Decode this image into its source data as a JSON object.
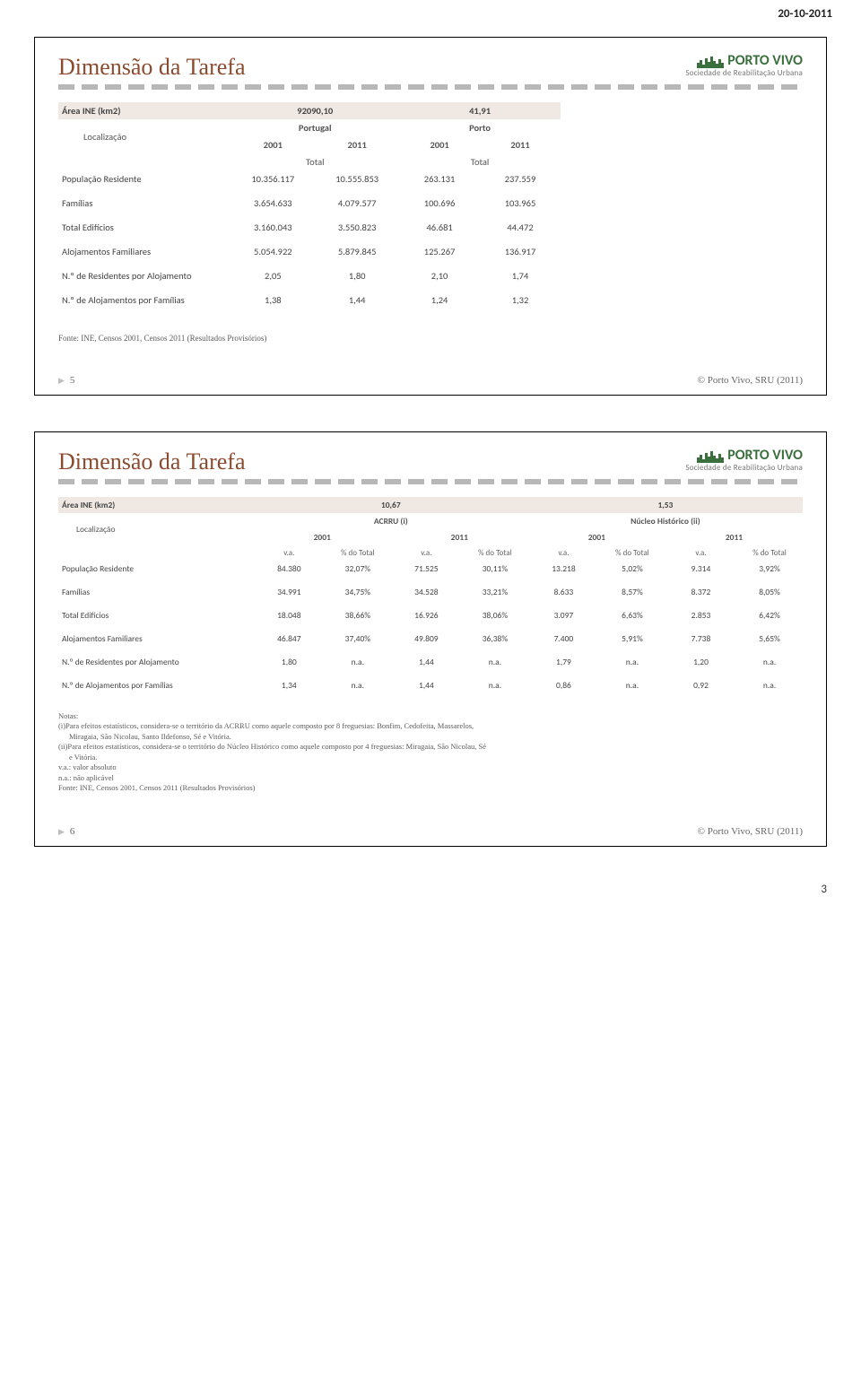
{
  "header_date": "20-10-2011",
  "logo": {
    "name": "PORTO VIVO",
    "sub": "Sociedade de Reabilitação Urbana"
  },
  "slide1": {
    "title": "Dimensão da Tarefa",
    "table": {
      "row_area_label": "Área INE (km2)",
      "area_vals": [
        "92090,10",
        "41,91"
      ],
      "row_loc_label": "Localização",
      "regions": [
        "Portugal",
        "Porto"
      ],
      "years": [
        "2001",
        "2011",
        "2001",
        "2011"
      ],
      "totals": [
        "Total",
        "Total"
      ],
      "rows": [
        {
          "label": "População Residente",
          "vals": [
            "10.356.117",
            "10.555.853",
            "263.131",
            "237.559"
          ]
        },
        {
          "label": "Famílias",
          "vals": [
            "3.654.633",
            "4.079.577",
            "100.696",
            "103.965"
          ]
        },
        {
          "label": "Total Edifícios",
          "vals": [
            "3.160.043",
            "3.550.823",
            "46.681",
            "44.472"
          ]
        },
        {
          "label": "Alojamentos Familiares",
          "vals": [
            "5.054.922",
            "5.879.845",
            "125.267",
            "136.917"
          ]
        },
        {
          "label": "N.º de Residentes por Alojamento",
          "vals": [
            "2,05",
            "1,80",
            "2,10",
            "1,74"
          ]
        },
        {
          "label": "N.º de Alojamentos por Famílias",
          "vals": [
            "1,38",
            "1,44",
            "1,24",
            "1,32"
          ]
        }
      ]
    },
    "source": "Fonte: INE, Censos 2001, Censos 2011 (Resultados Provisórios)",
    "page": "5",
    "copyright": "© Porto Vivo, SRU (2011)"
  },
  "slide2": {
    "title": "Dimensão da Tarefa",
    "table": {
      "row_area_label": "Área INE (km2)",
      "area_vals": [
        "10,67",
        "1,53"
      ],
      "row_loc_label": "Localização",
      "regions": [
        "ACRRU (i)",
        "Núcleo Histórico (ii)"
      ],
      "years": [
        "2001",
        "2011",
        "2001",
        "2011"
      ],
      "subhead": [
        "v.a.",
        "% do Total",
        "v.a.",
        "% do Total",
        "v.a.",
        "% do Total",
        "v.a.",
        "% do Total"
      ],
      "rows": [
        {
          "label": "População Residente",
          "vals": [
            "84.380",
            "32,07%",
            "71.525",
            "30,11%",
            "13.218",
            "5,02%",
            "9.314",
            "3,92%"
          ]
        },
        {
          "label": "Famílias",
          "vals": [
            "34.991",
            "34,75%",
            "34.528",
            "33,21%",
            "8.633",
            "8,57%",
            "8.372",
            "8,05%"
          ]
        },
        {
          "label": "Total Edifícios",
          "vals": [
            "18.048",
            "38,66%",
            "16.926",
            "38,06%",
            "3.097",
            "6,63%",
            "2.853",
            "6,42%"
          ]
        },
        {
          "label": "Alojamentos Familiares",
          "vals": [
            "46.847",
            "37,40%",
            "49.809",
            "36,38%",
            "7.400",
            "5,91%",
            "7.738",
            "5,65%"
          ]
        },
        {
          "label": "N.º de Residentes por Alojamento",
          "vals": [
            "1,80",
            "n.a.",
            "1,44",
            "n.a.",
            "1,79",
            "n.a.",
            "1,20",
            "n.a."
          ]
        },
        {
          "label": "N.º de Alojamentos por Famílias",
          "vals": [
            "1,34",
            "n.a.",
            "1,44",
            "n.a.",
            "0,86",
            "n.a.",
            "0,92",
            "n.a."
          ]
        }
      ]
    },
    "notes": {
      "title": "Notas:",
      "lines": [
        "(i)Para efeitos estatísticos, considera-se o território da ACRRU como aquele composto por 8 freguesias: Bonfim, Cedofeita, Massarelos,",
        "Miragaia, São Nicolau, Santo Ildefonso, Sé e Vitória.",
        "(ii)Para efeitos estatísticos, considera-se o território do Núcleo Histórico como aquele composto por 4 freguesias: Miragaia, São Nicolau, Sé",
        "e Vitória.",
        "v.a.: valor absoluto",
        "n.a.: não aplicável",
        "Fonte: INE, Censos 2001, Censos 2011 (Resultados Provisórios)"
      ]
    },
    "page": "6",
    "copyright": "© Porto Vivo, SRU (2011)"
  },
  "footer_page": "3"
}
